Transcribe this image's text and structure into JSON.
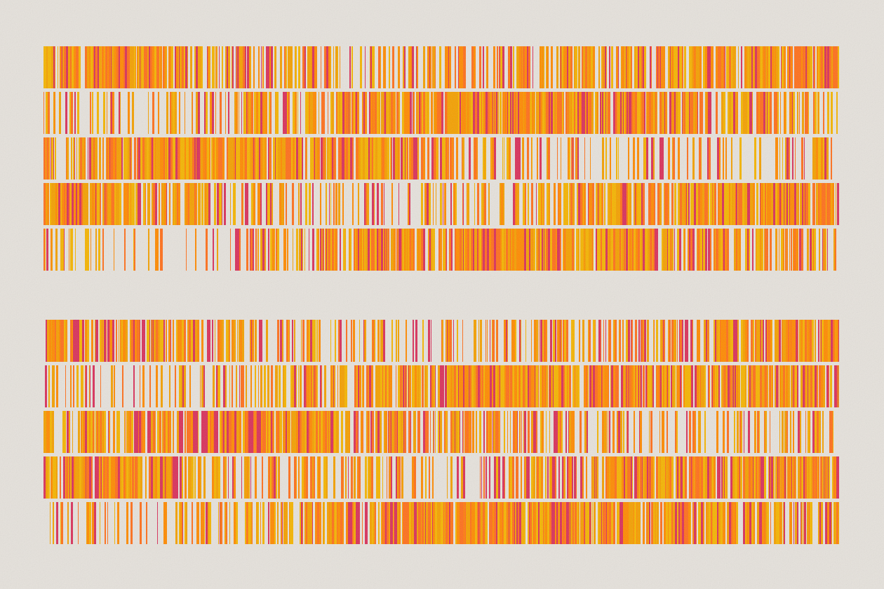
{
  "artwork": {
    "background_color": "#e6e2dc",
    "palette": [
      "#ff8a00",
      "#f5b400",
      "#d9305a",
      "#f4a000",
      "#ff6f1a"
    ],
    "panel_count": 2,
    "rows_per_panel": 5,
    "rows": [
      {
        "panel": 1,
        "row": 1,
        "density_profile": [
          0.95,
          0.9,
          0.55,
          0.45,
          0.6,
          0.75,
          0.85,
          0.92
        ]
      },
      {
        "panel": 1,
        "row": 2,
        "density_profile": [
          0.4,
          0.3,
          0.55,
          0.85,
          0.95,
          0.93,
          0.8,
          0.5
        ]
      },
      {
        "panel": 1,
        "row": 3,
        "density_profile": [
          0.6,
          0.9,
          0.95,
          0.85,
          0.6,
          0.35,
          0.3,
          0.4
        ]
      },
      {
        "panel": 1,
        "row": 4,
        "density_profile": [
          0.92,
          0.85,
          0.55,
          0.3,
          0.55,
          0.85,
          0.9,
          0.9
        ]
      },
      {
        "panel": 1,
        "row": 5,
        "density_profile": [
          0.35,
          0.25,
          0.5,
          0.85,
          0.95,
          0.9,
          0.8,
          0.45
        ]
      },
      {
        "panel": 2,
        "row": 1,
        "density_profile": [
          0.95,
          0.75,
          0.5,
          0.35,
          0.45,
          0.7,
          0.85,
          0.95
        ]
      },
      {
        "panel": 2,
        "row": 2,
        "density_profile": [
          0.35,
          0.3,
          0.55,
          0.85,
          0.95,
          0.93,
          0.85,
          0.75
        ]
      },
      {
        "panel": 2,
        "row": 3,
        "density_profile": [
          0.5,
          0.85,
          0.95,
          0.85,
          0.6,
          0.4,
          0.35,
          0.45
        ]
      },
      {
        "panel": 2,
        "row": 4,
        "density_profile": [
          0.92,
          0.85,
          0.6,
          0.35,
          0.45,
          0.85,
          0.9,
          0.9
        ]
      },
      {
        "panel": 2,
        "row": 5,
        "density_profile": [
          0.35,
          0.25,
          0.55,
          0.9,
          0.95,
          0.92,
          0.85,
          0.6
        ]
      }
    ]
  }
}
